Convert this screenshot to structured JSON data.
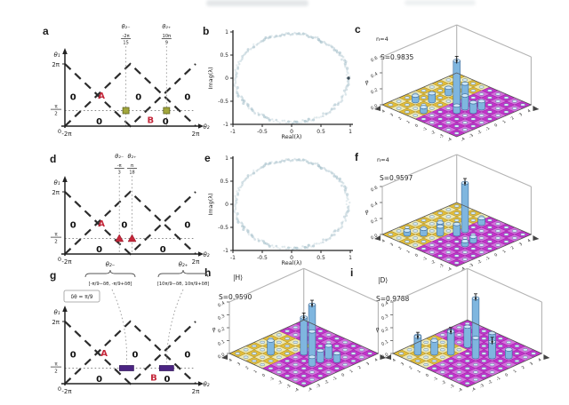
{
  "figure": {
    "background": "#ffffff"
  },
  "chart_data": [
    {
      "letter": "a",
      "type": "phase_diagram",
      "x_axis": {
        "label": "θ₂",
        "min_label": "-2π",
        "max_label": "2π"
      },
      "y_axis": {
        "label": "θ₁",
        "top_tick": "2π",
        "mid_num": "π",
        "mid_den": "2",
        "zero_tick": "0"
      },
      "dashed_lines_pi": [
        [
          [
            -2,
            2
          ],
          [
            0,
            0
          ],
          [
            2,
            2
          ]
        ],
        [
          [
            -2,
            0
          ],
          [
            0,
            2
          ],
          [
            2,
            0
          ]
        ]
      ],
      "horizontal_guide_y_pi": 0.5,
      "guides": [
        {
          "name": "θ₂₋",
          "num": "-2π",
          "den": "15",
          "x_pi": -0.1333
        },
        {
          "name": "θ₂₊",
          "num": "10π",
          "den": "9",
          "x_pi": 1.1111
        }
      ],
      "regions": [
        {
          "text": "0",
          "x_pi": -1.75,
          "y_pi": 0.95,
          "color": "#111111"
        },
        {
          "text": "A",
          "x_pi": -0.88,
          "y_pi": 0.98,
          "color": "#c4273a"
        },
        {
          "text": "0",
          "x_pi": 0.25,
          "y_pi": 0.95,
          "color": "#111111"
        },
        {
          "text": "0",
          "x_pi": 1.75,
          "y_pi": 0.95,
          "color": "#111111"
        },
        {
          "text": "0",
          "x_pi": -0.95,
          "y_pi": 0.16,
          "color": "#111111"
        },
        {
          "text": "B",
          "x_pi": 0.62,
          "y_pi": 0.2,
          "color": "#c4273a"
        },
        {
          "text": "0",
          "x_pi": 1.08,
          "y_pi": 0.16,
          "color": "#111111"
        }
      ],
      "markers": {
        "shape": "square",
        "color": "#a2a73c",
        "border": "#5d611f",
        "x_pi": [
          -0.1333,
          1.1111
        ],
        "y_pi": 0.5
      }
    },
    {
      "letter": "b",
      "type": "eigenvalue_circle",
      "x_label": "Real(λ)",
      "y_label": "Imag(λ)",
      "x_ticks": [
        "-1",
        "-0.5",
        "0",
        "0.5",
        "1"
      ],
      "y_ticks": [
        "-1",
        "-0.5",
        "0",
        "0.5",
        "1"
      ],
      "ring_color": "#8fb0bd",
      "special_points": [
        {
          "x": 1,
          "y": 0
        }
      ]
    },
    {
      "letter": "c",
      "type": "bar3d",
      "top_label": "n=4",
      "s_label": "S=0.9835",
      "z_label": "P",
      "z_ticks": [
        "0.0",
        "0.2",
        "0.4",
        "0.6"
      ],
      "z_max": 0.6,
      "x_tick_labels": [
        "4",
        "3",
        "2",
        "1",
        "0",
        "-1",
        "-2",
        "-3",
        "-4"
      ],
      "y_tick_labels": [
        "-4",
        "-3",
        "-2",
        "-1",
        "0",
        "1",
        "2",
        "3",
        "4"
      ],
      "grid_n": 9,
      "yellow_region": {
        "i_max": 4,
        "j_max": 9
      },
      "colors": {
        "yellow1": "#e2bd3a",
        "yellow2": "#efe9b2",
        "magenta1": "#c332cb",
        "magenta2": "#d470dd",
        "bar_side": "#7fb6df",
        "bar_top": "#cde6f7"
      },
      "bars": [
        {
          "i": 1,
          "j": 2,
          "p": 0.07
        },
        {
          "i": 2,
          "j": 3,
          "p": 0.1
        },
        {
          "i": 3,
          "j": 1,
          "p": 0.06
        },
        {
          "i": 2,
          "j": 5,
          "p": 0.08
        },
        {
          "i": 4,
          "j": 4,
          "p": 0.55,
          "err": true
        },
        {
          "i": 4,
          "j": 5,
          "p": 0.22
        },
        {
          "i": 5,
          "j": 4,
          "p": 0.16
        },
        {
          "i": 6,
          "j": 4,
          "p": 0.12
        },
        {
          "i": 6,
          "j": 5,
          "p": 0.09
        },
        {
          "i": 5,
          "j": 3,
          "p": 0.08
        }
      ]
    },
    {
      "letter": "d",
      "type": "phase_diagram",
      "x_axis": {
        "label": "θ₂",
        "min_label": "-2π",
        "max_label": "2π"
      },
      "y_axis": {
        "label": "θ₁",
        "top_tick": "2π",
        "mid_num": "π",
        "mid_den": "2",
        "zero_tick": "0"
      },
      "dashed_lines_pi": [
        [
          [
            -2,
            2
          ],
          [
            0,
            0
          ],
          [
            2,
            2
          ]
        ],
        [
          [
            -2,
            0
          ],
          [
            0,
            2
          ],
          [
            2,
            0
          ]
        ]
      ],
      "horizontal_guide_y_pi": 0.5,
      "guides": [
        {
          "name": "θ₂₋",
          "num": "-π",
          "den": "3",
          "x_pi": -0.3333
        },
        {
          "name": "θ₂₊",
          "num": "π",
          "den": "18",
          "x_pi": 0.0556
        }
      ],
      "regions": [
        {
          "text": "0",
          "x_pi": -1.75,
          "y_pi": 0.95,
          "color": "#111111"
        },
        {
          "text": "A",
          "x_pi": -0.88,
          "y_pi": 0.98,
          "color": "#c4273a"
        },
        {
          "text": "0",
          "x_pi": -0.18,
          "y_pi": 0.95,
          "color": "#111111"
        },
        {
          "text": "0",
          "x_pi": 1.75,
          "y_pi": 0.95,
          "color": "#111111"
        },
        {
          "text": "0",
          "x_pi": -0.95,
          "y_pi": 0.16,
          "color": "#111111"
        },
        {
          "text": "0",
          "x_pi": 1.0,
          "y_pi": 0.16,
          "color": "#111111"
        }
      ],
      "markers": {
        "shape": "triangle",
        "color": "#c4273a",
        "border": "#8a1020",
        "x_pi": [
          -0.3333,
          0.0556
        ],
        "y_pi": 0.5
      }
    },
    {
      "letter": "e",
      "type": "eigenvalue_circle",
      "x_label": "Real(λ)",
      "y_label": "Imag(λ)",
      "x_ticks": [
        "-1",
        "-0.5",
        "0",
        "0.5",
        "1"
      ],
      "y_ticks": [
        "-1",
        "-0.5",
        "0",
        "0.5",
        "1"
      ],
      "ring_color": "#8fb0bd",
      "special_points": []
    },
    {
      "letter": "f",
      "type": "bar3d",
      "top_label": "n=4",
      "s_label": "S=0.9597",
      "z_label": "P",
      "z_ticks": [
        "0.0",
        "0.2",
        "0.4",
        "0.6"
      ],
      "z_max": 0.6,
      "x_tick_labels": [
        "4",
        "3",
        "2",
        "1",
        "0",
        "-1",
        "-2",
        "-3",
        "-4"
      ],
      "y_tick_labels": [
        "-4",
        "-3",
        "-2",
        "-1",
        "0",
        "1",
        "2",
        "3",
        "4"
      ],
      "grid_n": 9,
      "yellow_region": {
        "i_max": 4,
        "j_max": 9
      },
      "colors": {
        "yellow1": "#e2bd3a",
        "yellow2": "#efe9b2",
        "magenta1": "#c332cb",
        "magenta2": "#d470dd",
        "bar_side": "#7fb6df",
        "bar_top": "#cde6f7"
      },
      "bars": [
        {
          "i": 1,
          "j": 1,
          "p": 0.05
        },
        {
          "i": 2,
          "j": 2,
          "p": 0.07
        },
        {
          "i": 3,
          "j": 3,
          "p": 0.1
        },
        {
          "i": 2,
          "j": 4,
          "p": 0.06
        },
        {
          "i": 4,
          "j": 4,
          "p": 0.13
        },
        {
          "i": 4,
          "j": 5,
          "p": 0.6,
          "err": true
        },
        {
          "i": 4,
          "j": 7,
          "p": 0.07
        },
        {
          "i": 6,
          "j": 3,
          "p": 0.05
        },
        {
          "i": 6,
          "j": 4,
          "p": 0.06
        }
      ]
    },
    {
      "letter": "g",
      "type": "phase_diagram",
      "x_axis": {
        "label": "θ₂",
        "min_label": "-2π",
        "max_label": "2π"
      },
      "y_axis": {
        "label": "θ₁",
        "top_tick": "2π",
        "mid_num": "π",
        "mid_den": "2",
        "zero_tick": "0"
      },
      "dashed_lines_pi": [
        [
          [
            -2,
            2
          ],
          [
            0,
            0
          ],
          [
            2,
            2
          ]
        ],
        [
          [
            -2,
            0
          ],
          [
            0,
            2
          ],
          [
            2,
            0
          ]
        ]
      ],
      "horizontal_guide_y_pi": 0.5,
      "guides": [],
      "annotations": {
        "brace_left_title": "θ₂₋",
        "formula_left": "[-π/9−δθ, -π/9+δθ]",
        "brace_right_title": "θ₂₊",
        "formula_right": "[10π/9−δθ, 10π/9+δθ]",
        "box": "δθ = π/9"
      },
      "regions": [
        {
          "text": "0",
          "x_pi": -1.75,
          "y_pi": 0.95,
          "color": "#111111"
        },
        {
          "text": "A",
          "x_pi": -0.8,
          "y_pi": 0.98,
          "color": "#c4273a"
        },
        {
          "text": "0",
          "x_pi": 0.15,
          "y_pi": 0.95,
          "color": "#111111"
        },
        {
          "text": "0",
          "x_pi": 1.75,
          "y_pi": 0.95,
          "color": "#111111"
        },
        {
          "text": "0",
          "x_pi": -0.95,
          "y_pi": 0.16,
          "color": "#111111"
        },
        {
          "text": "B",
          "x_pi": 0.72,
          "y_pi": 0.2,
          "color": "#c4273a"
        },
        {
          "text": "0",
          "x_pi": 1.13,
          "y_pi": 0.16,
          "color": "#111111"
        }
      ],
      "markers": {
        "shape": "bar",
        "color": "#4b2483",
        "border": "#2e1355",
        "x_pi": [
          -0.1111,
          1.1111
        ],
        "y_pi": 0.5
      }
    },
    {
      "letter": "h",
      "type": "bar3d",
      "top_label": "|H⟩",
      "s_label": "S=0.9590",
      "z_label": "P",
      "z_ticks": [
        "0.0",
        "0.1",
        "0.2",
        "0.3",
        "0.4"
      ],
      "z_max": 0.4,
      "x_tick_labels": [
        "4",
        "3",
        "2",
        "1",
        "0",
        "-1",
        "-2",
        "-3",
        "-4"
      ],
      "y_tick_labels": [
        "-4",
        "-3",
        "-2",
        "-1",
        "0",
        "1",
        "2",
        "3",
        "4"
      ],
      "grid_n": 9,
      "yellow_region": {
        "i_max": 4,
        "j_max": 6
      },
      "colors": {
        "yellow1": "#e2bd3a",
        "yellow2": "#efe9b2",
        "magenta1": "#c332cb",
        "magenta2": "#d470dd",
        "bar_side": "#7fb6df",
        "bar_top": "#cde6f7"
      },
      "bars": [
        {
          "i": 2,
          "j": 2,
          "p": 0.1
        },
        {
          "i": 4,
          "j": 4,
          "p": 0.28,
          "err": true
        },
        {
          "i": 4,
          "j": 5,
          "p": 0.35,
          "err": true
        },
        {
          "i": 5,
          "j": 4,
          "p": 0.2
        },
        {
          "i": 6,
          "j": 4,
          "p": 0.08
        },
        {
          "i": 6,
          "j": 5,
          "p": 0.09
        },
        {
          "i": 7,
          "j": 5,
          "p": 0.06
        },
        {
          "i": 6,
          "j": 3,
          "p": 0.06
        }
      ]
    },
    {
      "letter": "i",
      "type": "bar3d",
      "top_label": "|D⟩",
      "s_label": "S=0.9788",
      "z_label": "P",
      "z_ticks": [
        "0.0",
        "0.1",
        "0.2",
        "0.3",
        "0.4"
      ],
      "z_max": 0.4,
      "x_tick_labels": [
        "4",
        "3",
        "2",
        "1",
        "0",
        "-1",
        "-2",
        "-3",
        "-4"
      ],
      "y_tick_labels": [
        "-4",
        "-3",
        "-2",
        "-1",
        "0",
        "1",
        "2",
        "3",
        "4"
      ],
      "grid_n": 9,
      "yellow_region": {
        "i_max": 4,
        "j_max": 5
      },
      "colors": {
        "yellow1": "#e2bd3a",
        "yellow2": "#efe9b2",
        "magenta1": "#c332cb",
        "magenta2": "#d470dd",
        "bar_side": "#7fb6df",
        "bar_top": "#cde6f7"
      },
      "bars": [
        {
          "i": 0,
          "j": 2,
          "p": 0.08
        },
        {
          "i": 1,
          "j": 1,
          "p": 0.13,
          "err": true
        },
        {
          "i": 2,
          "j": 2,
          "p": 0.1
        },
        {
          "i": 3,
          "j": 3,
          "p": 0.17,
          "err": true
        },
        {
          "i": 2,
          "j": 4,
          "p": 0.12
        },
        {
          "i": 3,
          "j": 5,
          "p": 0.15
        },
        {
          "i": 4,
          "j": 5,
          "p": 0.4,
          "err": true
        },
        {
          "i": 5,
          "j": 4,
          "p": 0.15
        },
        {
          "i": 5,
          "j": 6,
          "p": 0.13
        },
        {
          "i": 6,
          "j": 5,
          "p": 0.12,
          "err": true
        },
        {
          "i": 7,
          "j": 6,
          "p": 0.06
        }
      ]
    }
  ]
}
